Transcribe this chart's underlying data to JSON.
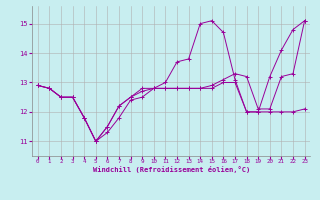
{
  "xlabel": "Windchill (Refroidissement éolien,°C)",
  "bg_color": "#c8eef0",
  "grid_color": "#b0b0b0",
  "line_color": "#990099",
  "xlim": [
    -0.5,
    23.5
  ],
  "ylim": [
    10.5,
    15.6
  ],
  "yticks": [
    11,
    12,
    13,
    14,
    15
  ],
  "xticks": [
    0,
    1,
    2,
    3,
    4,
    5,
    6,
    7,
    8,
    9,
    10,
    11,
    12,
    13,
    14,
    15,
    16,
    17,
    18,
    19,
    20,
    21,
    22,
    23
  ],
  "series": [
    {
      "x": [
        0,
        1,
        2,
        3,
        4,
        5,
        6,
        7,
        8,
        9,
        10,
        11,
        12,
        13,
        14,
        15,
        16,
        17,
        18,
        19,
        20,
        21,
        22,
        23
      ],
      "y": [
        12.9,
        12.8,
        12.5,
        12.5,
        11.8,
        11.0,
        11.3,
        11.8,
        12.4,
        12.5,
        12.8,
        13.0,
        13.7,
        13.8,
        15.0,
        15.1,
        14.7,
        13.1,
        12.0,
        12.0,
        13.2,
        14.1,
        14.8,
        15.1
      ]
    },
    {
      "x": [
        0,
        1,
        2,
        3,
        4,
        5,
        6,
        7,
        8,
        9,
        10,
        11,
        12,
        13,
        14,
        15,
        16,
        17,
        18,
        19,
        20,
        21,
        22,
        23
      ],
      "y": [
        12.9,
        12.8,
        12.5,
        12.5,
        11.8,
        11.0,
        11.5,
        12.2,
        12.5,
        12.7,
        12.8,
        12.8,
        12.8,
        12.8,
        12.8,
        12.8,
        13.0,
        13.0,
        12.0,
        12.0,
        12.0,
        12.0,
        12.0,
        12.1
      ]
    },
    {
      "x": [
        0,
        1,
        2,
        3,
        4,
        5,
        6,
        7,
        8,
        9,
        10,
        11,
        12,
        13,
        14,
        15,
        16,
        17,
        18,
        19,
        20,
        21,
        22,
        23
      ],
      "y": [
        12.9,
        12.8,
        12.5,
        12.5,
        11.8,
        11.0,
        11.5,
        12.2,
        12.5,
        12.8,
        12.8,
        12.8,
        12.8,
        12.8,
        12.8,
        12.9,
        13.1,
        13.3,
        13.2,
        12.1,
        12.1,
        13.2,
        13.3,
        15.1
      ]
    }
  ]
}
